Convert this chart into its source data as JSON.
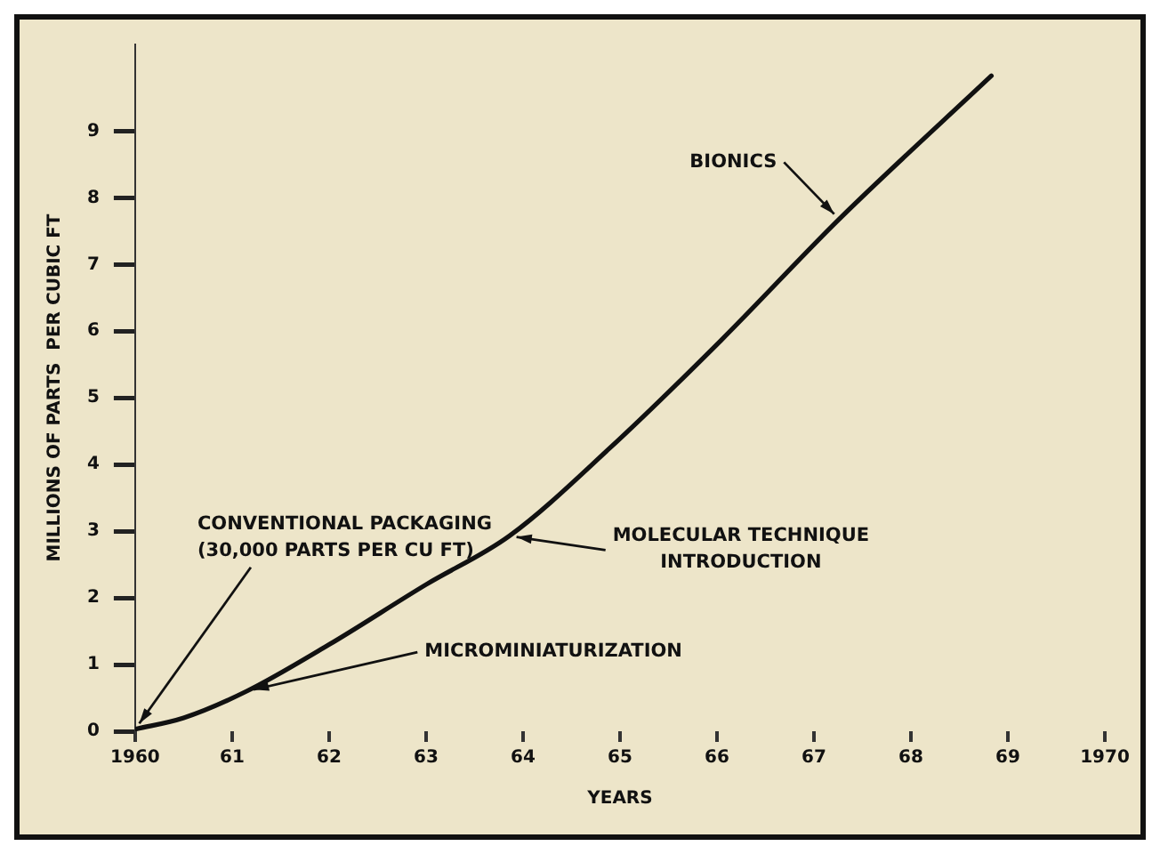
{
  "chart_data": {
    "type": "line",
    "xlabel": "YEARS",
    "ylabel": "MILLIONS OF PARTS  PER CUBIC FT",
    "x": [
      1960,
      1960.5,
      1961.15,
      1962,
      1963,
      1963.86,
      1964.89,
      1966.04,
      1967.26,
      1968.83
    ],
    "series": [
      {
        "color": "#111111",
        "values": [
          0.03,
          0.2,
          0.6,
          1.3,
          2.2,
          2.93,
          4.24,
          5.86,
          7.68,
          9.83
        ]
      }
    ],
    "xlim": [
      1960,
      1970
    ],
    "xticks": [
      {
        "value": 1960,
        "label": "1960"
      },
      {
        "value": 1961,
        "label": "61"
      },
      {
        "value": 1962,
        "label": "62"
      },
      {
        "value": 1963,
        "label": "63"
      },
      {
        "value": 1964,
        "label": "64"
      },
      {
        "value": 1965,
        "label": "65"
      },
      {
        "value": 1966,
        "label": "66"
      },
      {
        "value": 1967,
        "label": "67"
      },
      {
        "value": 1968,
        "label": "68"
      },
      {
        "value": 1969,
        "label": "69"
      },
      {
        "value": 1970,
        "label": "1970"
      }
    ],
    "ylim": [
      0,
      10.3
    ],
    "yticks": [
      0,
      1,
      2,
      3,
      4,
      5,
      6,
      7,
      8,
      9
    ],
    "grid": false,
    "legend": false,
    "marker": "none",
    "line_style": "solid",
    "annotations": [
      {
        "text": "CONVENTIONAL PACKAGING\n(30,000 PARTS PER CU FT)",
        "x": 1960,
        "y": 0.03
      },
      {
        "text": "MICROMINIATURIZATION",
        "x": 1961.15,
        "y": 0.6
      },
      {
        "text": "MOLECULAR TECHNIQUE\nINTRODUCTION",
        "x": 1963.86,
        "y": 2.93
      },
      {
        "text": "BIONICS",
        "x": 1967.26,
        "y": 7.68
      }
    ]
  }
}
